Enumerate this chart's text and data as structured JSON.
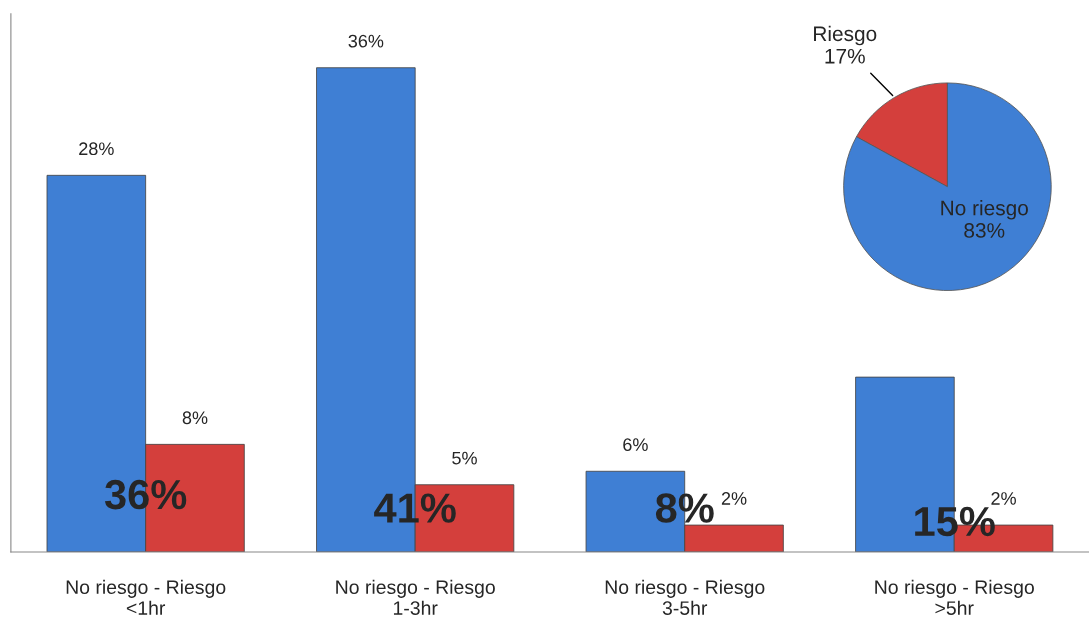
{
  "chart_data": [
    {
      "type": "bar",
      "categories": [
        "No riesgo - Riesgo\n<1hr",
        "No riesgo - Riesgo\n1-3hr",
        "No riesgo - Riesgo\n3-5hr",
        "No riesgo - Riesgo\n>5hr"
      ],
      "series": [
        {
          "color": "#3f7fd4",
          "values": [
            28,
            36,
            6,
            13
          ],
          "value_labels": [
            "28%",
            "36%",
            "6%",
            null
          ]
        },
        {
          "color": "#d43f3c",
          "values": [
            8,
            5,
            2,
            2
          ],
          "value_labels": [
            "8%",
            "5%",
            "2%",
            "2%"
          ]
        }
      ],
      "ylim": [
        0,
        40
      ],
      "tick_labels": "x",
      "legend": false,
      "grid": false,
      "annotations": [
        {
          "text": "36%",
          "x": "No riesgo - Riesgo\n<1hr",
          "y": 4
        },
        {
          "text": "41%",
          "x": "No riesgo - Riesgo\n1-3hr",
          "y": 3
        },
        {
          "text": "8%",
          "x": "No riesgo - Riesgo\n3-5hr",
          "y": 3
        },
        {
          "text": "15%",
          "x": "No riesgo - Riesgo\n>5hr",
          "y": 2
        }
      ]
    },
    {
      "type": "pie",
      "categories": [
        "Riesgo",
        "No riesgo"
      ],
      "values": [
        17,
        83
      ],
      "colors": [
        "#d43f3c",
        "#3f7fd4"
      ],
      "value_labels": [
        "17%",
        "83%"
      ]
    }
  ]
}
